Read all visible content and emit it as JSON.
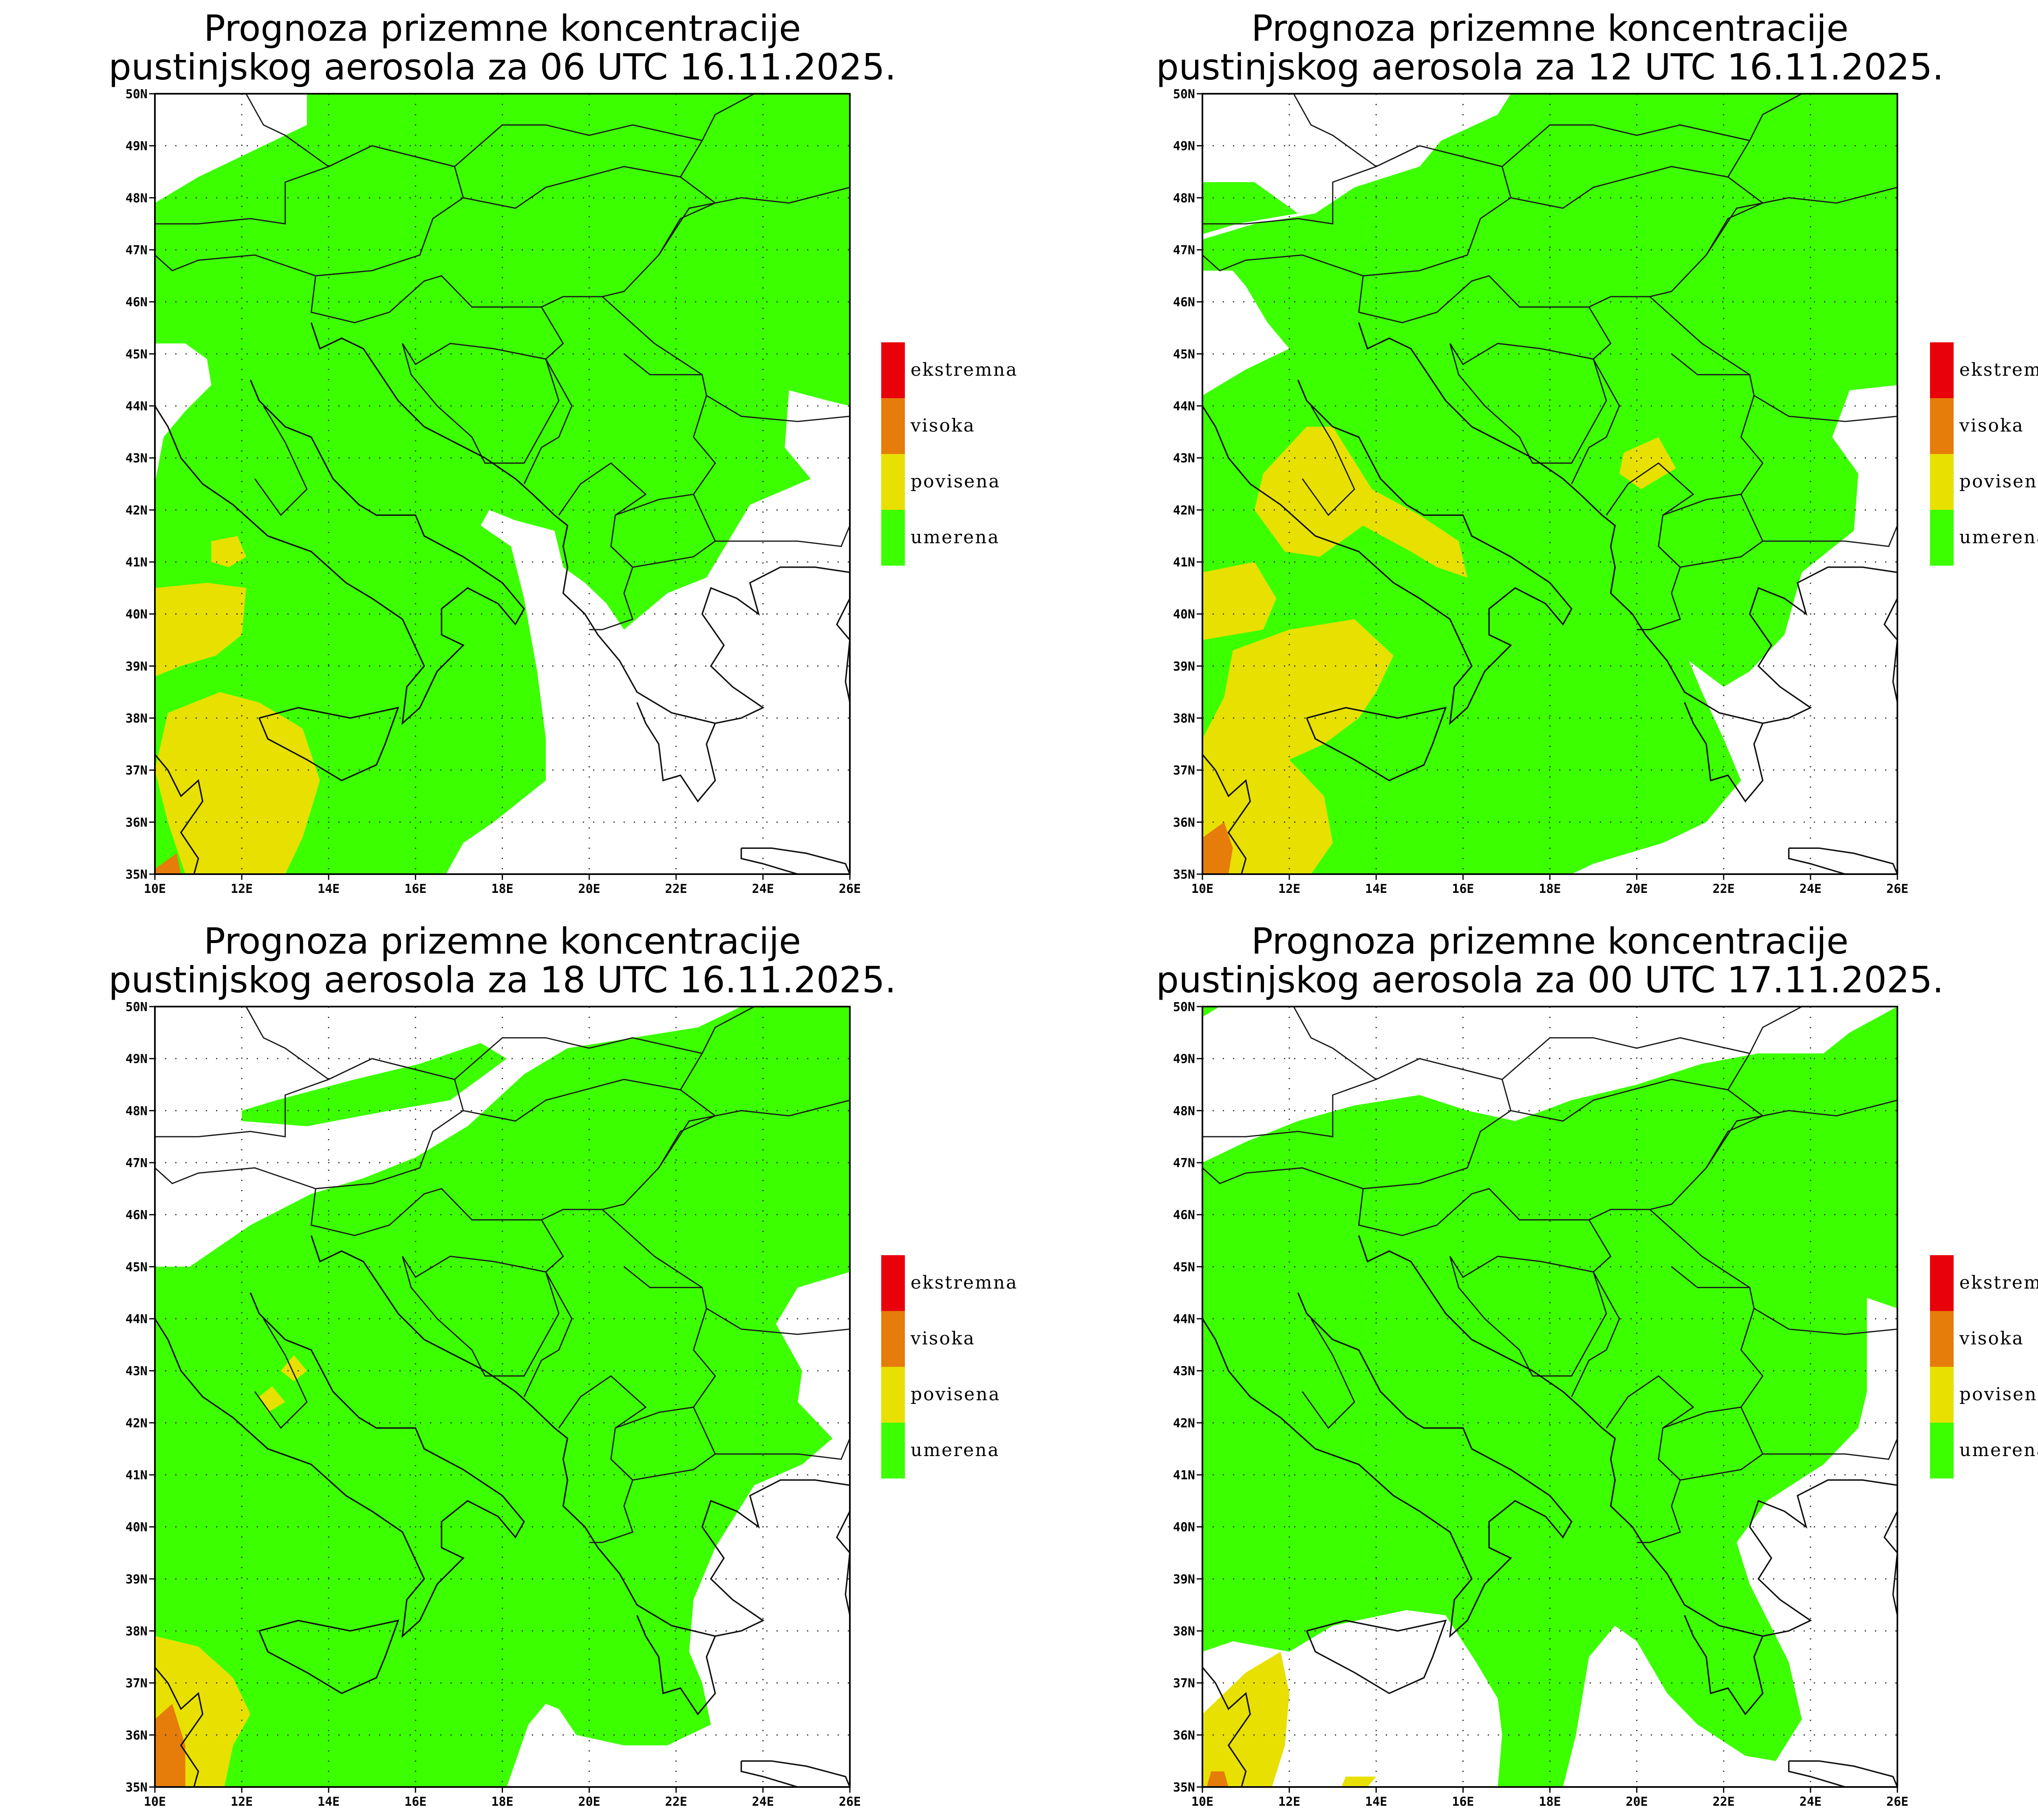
{
  "panels": [
    {
      "title_line1": "Prognoza prizemne koncentracije",
      "title_line2": "pustinjskog aerosola za 06 UTC 16.11.2025."
    },
    {
      "title_line1": "Prognoza prizemne koncentracije",
      "title_line2": "pustinjskog aerosola za 12 UTC 16.11.2025."
    },
    {
      "title_line1": "Prognoza prizemne koncentracije",
      "title_line2": "pustinjskog aerosola za 18 UTC 16.11.2025."
    },
    {
      "title_line1": "Prognoza prizemne koncentracije",
      "title_line2": "pustinjskog aerosola za 00 UTC 17.11.2025."
    }
  ],
  "axes": {
    "lat_labels": [
      "35N",
      "36N",
      "37N",
      "38N",
      "39N",
      "40N",
      "41N",
      "42N",
      "43N",
      "44N",
      "45N",
      "46N",
      "47N",
      "48N",
      "49N",
      "50N"
    ],
    "lon_labels": [
      "10E",
      "12E",
      "14E",
      "16E",
      "18E",
      "20E",
      "22E",
      "24E",
      "26E"
    ]
  },
  "legend": {
    "items": [
      {
        "label": "ekstremna",
        "color": "#e8000b"
      },
      {
        "label": "visoka",
        "color": "#e67c0a"
      },
      {
        "label": "povisena",
        "color": "#e8e000"
      },
      {
        "label": "umerena",
        "color": "#3cff00"
      }
    ]
  },
  "colors": {
    "umerena": "#3cff00",
    "povisena": "#e8e000",
    "visoka": "#e67c0a",
    "ekstremna": "#e8000b"
  }
}
